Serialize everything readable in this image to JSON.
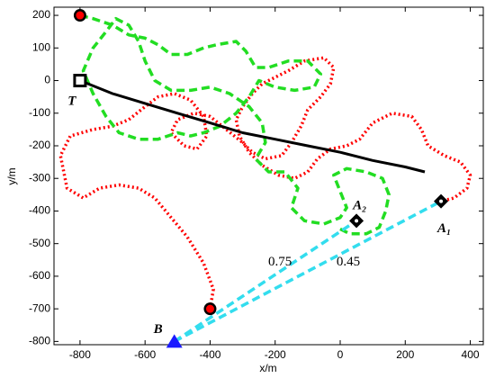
{
  "chart_data": {
    "type": "line",
    "xlabel": "x/m",
    "ylabel": "y/m",
    "xlim": [
      -880,
      440
    ],
    "ylim": [
      -810,
      225
    ],
    "xticks": [
      -800,
      -600,
      -400,
      -200,
      0,
      200,
      400
    ],
    "yticks": [
      -800,
      -700,
      -600,
      -500,
      -400,
      -300,
      -200,
      -100,
      0,
      100,
      200
    ],
    "series": [
      {
        "color": "#ff0000",
        "style": "dotted",
        "x": [
          -400,
          -390,
          -420,
          -470,
          -520,
          -570,
          -620,
          -680,
          -740,
          -790,
          -840,
          -860,
          -830,
          -760,
          -700,
          -650,
          -600,
          -560,
          -510,
          -460,
          -420,
          -410,
          -440,
          -480,
          -520,
          -500,
          -450,
          -400,
          -350,
          -300,
          -270,
          -230,
          -180,
          -150,
          -120,
          -100,
          -60,
          -30,
          -20,
          -50,
          -110,
          -160,
          -200,
          -240,
          -270,
          -300,
          -320,
          -310,
          -280,
          -240,
          -190,
          -140,
          -100,
          -70,
          -30,
          20,
          60,
          100,
          160,
          220,
          250,
          270,
          320,
          370,
          400,
          390,
          350,
          310
        ],
        "y": [
          -700,
          -640,
          -560,
          -480,
          -420,
          -360,
          -330,
          -320,
          -330,
          -360,
          -330,
          -230,
          -170,
          -150,
          -140,
          -120,
          -80,
          -50,
          -40,
          -60,
          -110,
          -170,
          -210,
          -200,
          -160,
          -120,
          -100,
          -110,
          -150,
          -190,
          -220,
          -240,
          -230,
          -190,
          -140,
          -90,
          -50,
          -10,
          40,
          70,
          60,
          30,
          10,
          -10,
          -40,
          -80,
          -120,
          -170,
          -220,
          -260,
          -290,
          -300,
          -280,
          -240,
          -210,
          -200,
          -180,
          -130,
          -100,
          -110,
          -150,
          -200,
          -230,
          -250,
          -290,
          -330,
          -360,
          -370
        ]
      },
      {
        "color": "#22dd22",
        "style": "dashed",
        "x": [
          -800,
          -760,
          -700,
          -650,
          -600,
          -560,
          -520,
          -470,
          -420,
          -380,
          -320,
          -290,
          -260,
          -220,
          -160,
          -100,
          -60,
          -80,
          -140,
          -200,
          -250,
          -280,
          -320,
          -370,
          -420,
          -460,
          -500,
          -560,
          -620,
          -680,
          -720,
          -760,
          -790,
          -760,
          -720,
          -690,
          -650,
          -620,
          -600,
          -570,
          -520,
          -460,
          -400,
          -340,
          -280,
          -240,
          -230,
          -260,
          -220,
          -170,
          -130,
          -150,
          -110,
          -50,
          0,
          20,
          0,
          -20,
          20,
          80,
          130,
          150,
          140,
          120,
          80,
          30,
          -10
        ],
        "y": [
          200,
          190,
          170,
          140,
          130,
          110,
          80,
          80,
          100,
          110,
          120,
          90,
          40,
          40,
          60,
          60,
          20,
          -20,
          -30,
          -20,
          0,
          -50,
          -100,
          -140,
          -160,
          -170,
          -160,
          -180,
          -180,
          -160,
          -110,
          -40,
          30,
          100,
          150,
          190,
          170,
          120,
          60,
          0,
          -30,
          -30,
          -20,
          -40,
          -80,
          -130,
          -190,
          -240,
          -280,
          -280,
          -330,
          -390,
          -430,
          -440,
          -420,
          -390,
          -340,
          -290,
          -270,
          -280,
          -300,
          -350,
          -400,
          -450,
          -470,
          -470,
          -450
        ]
      },
      {
        "color": "#000000",
        "style": "solid",
        "x": [
          -800,
          -700,
          -600,
          -500,
          -400,
          -300,
          -200,
          -100,
          0,
          100,
          200,
          260
        ],
        "y": [
          0,
          -40,
          -70,
          -100,
          -130,
          -160,
          -180,
          -200,
          -220,
          -245,
          -265,
          -280
        ]
      },
      {
        "color": "#33ddee",
        "style": "dashed",
        "x": [
          -510,
          310
        ],
        "y": [
          -800,
          -370
        ]
      },
      {
        "color": "#33ddee",
        "style": "dashed",
        "x": [
          -510,
          50
        ],
        "y": [
          -800,
          -430
        ]
      }
    ],
    "markers": [
      {
        "shape": "circle",
        "color": "#ff0000",
        "x": -800,
        "y": 200
      },
      {
        "shape": "circle",
        "color": "#ff0000",
        "x": -400,
        "y": -700
      },
      {
        "shape": "square",
        "color": "#000000",
        "x": -800,
        "y": 0
      },
      {
        "shape": "diamond",
        "color": "#000000",
        "x": 310,
        "y": -370
      },
      {
        "shape": "diamond",
        "color": "#000000",
        "x": 50,
        "y": -430
      },
      {
        "shape": "triangle",
        "color": "#1a1aff",
        "x": -510,
        "y": -800
      }
    ],
    "annotations": [
      {
        "text": "T",
        "x": -825,
        "y": -65,
        "style": "italic"
      },
      {
        "text": "A₂",
        "x": 60,
        "y": -385,
        "style": "italic"
      },
      {
        "text": "A₁",
        "x": 320,
        "y": -455,
        "style": "italic"
      },
      {
        "text": "B",
        "x": -560,
        "y": -765,
        "style": "italic"
      },
      {
        "text": "0.75",
        "x": -185,
        "y": -558,
        "style": "normal"
      },
      {
        "text": "0.45",
        "x": 25,
        "y": -558,
        "style": "normal"
      }
    ]
  }
}
